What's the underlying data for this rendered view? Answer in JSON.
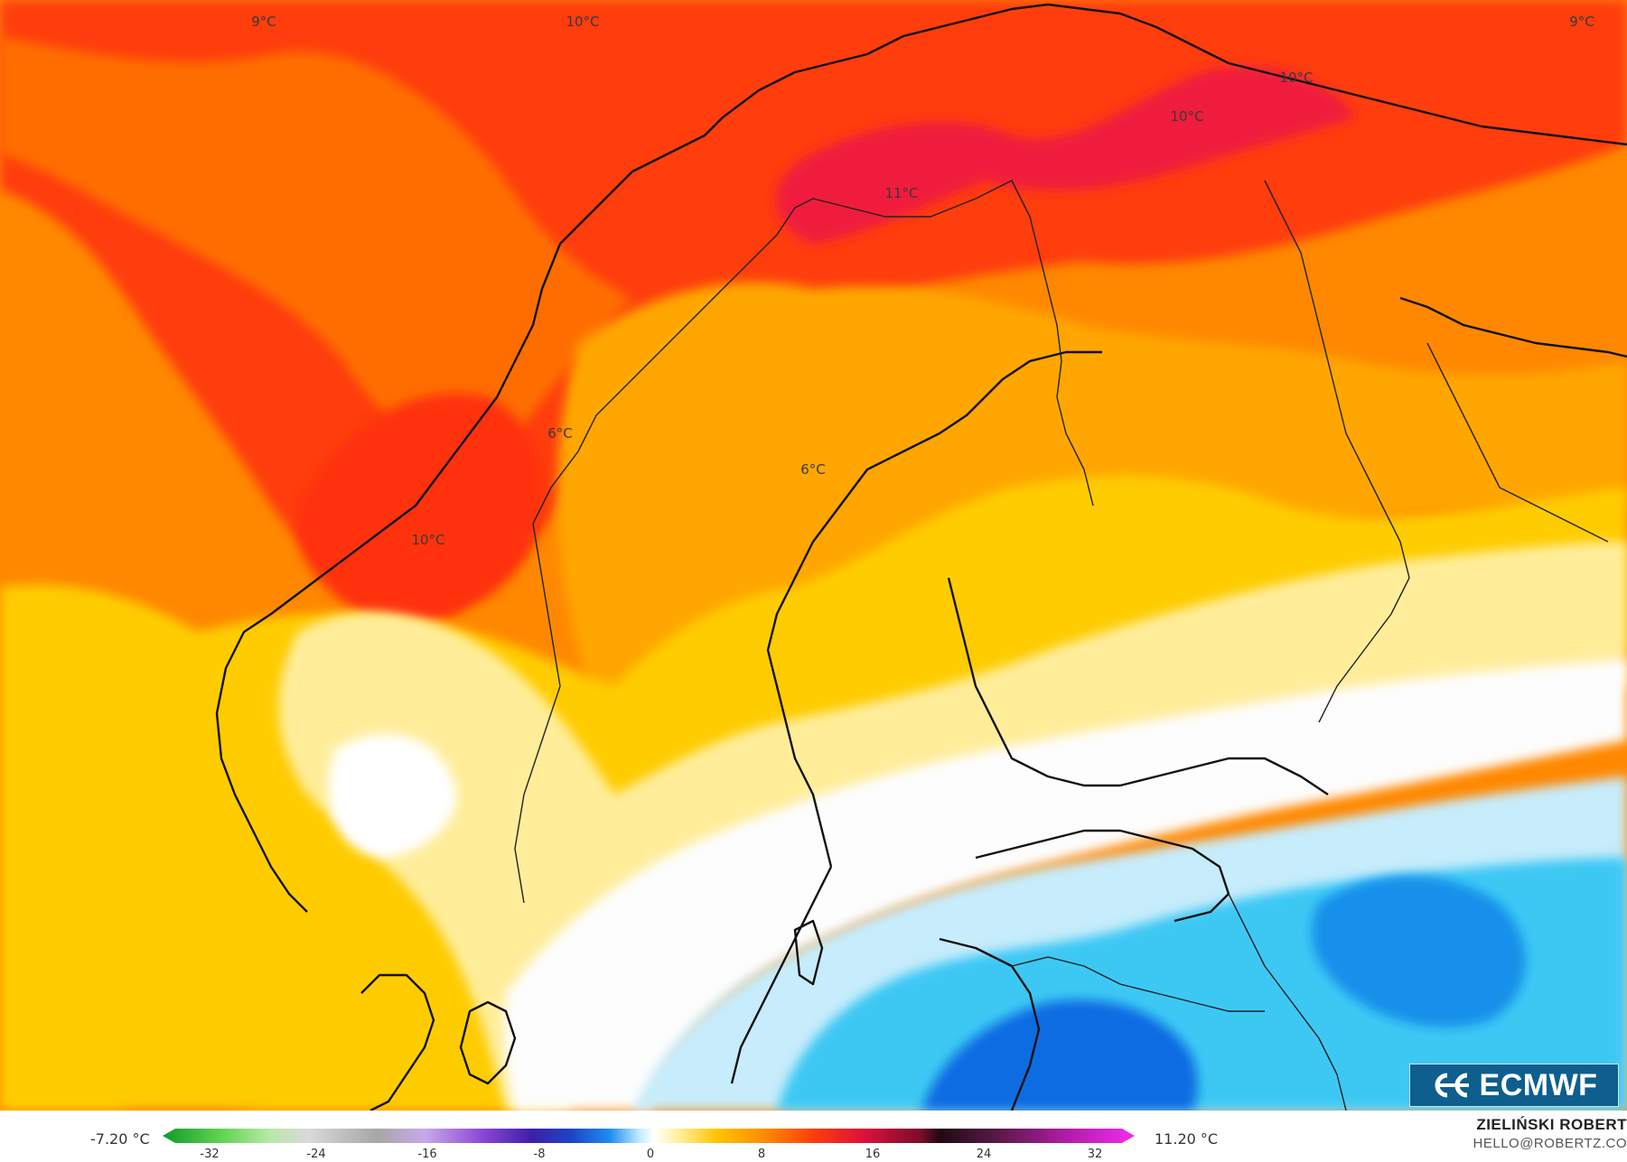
{
  "map": {
    "labels": [
      "9°C",
      "10°C",
      "9°C",
      "10°C",
      "10°C",
      "11°C",
      "6°C",
      "10°C",
      "6°C"
    ]
  },
  "colorbar": {
    "min_label": "-7.20 °C",
    "max_label": "11.20 °C",
    "ticks": [
      "-32",
      "-24",
      "-16",
      "-8",
      "0",
      "8",
      "16",
      "24",
      "32"
    ]
  },
  "logo": {
    "text": "ECMWF"
  },
  "author": {
    "name": "ZIELIŃSKI ROBERT",
    "email": "HELLO@ROBERTZ.CO"
  },
  "colors": {
    "deep_red": "#f0163c",
    "red": "#ff3a0a",
    "orange": "#ff8a00",
    "yellow": "#ffd200",
    "pale_yellow": "#fff3b8",
    "light_blue": "#c8ecfb",
    "cyan": "#33c6f2",
    "blue": "#0a68e0"
  }
}
